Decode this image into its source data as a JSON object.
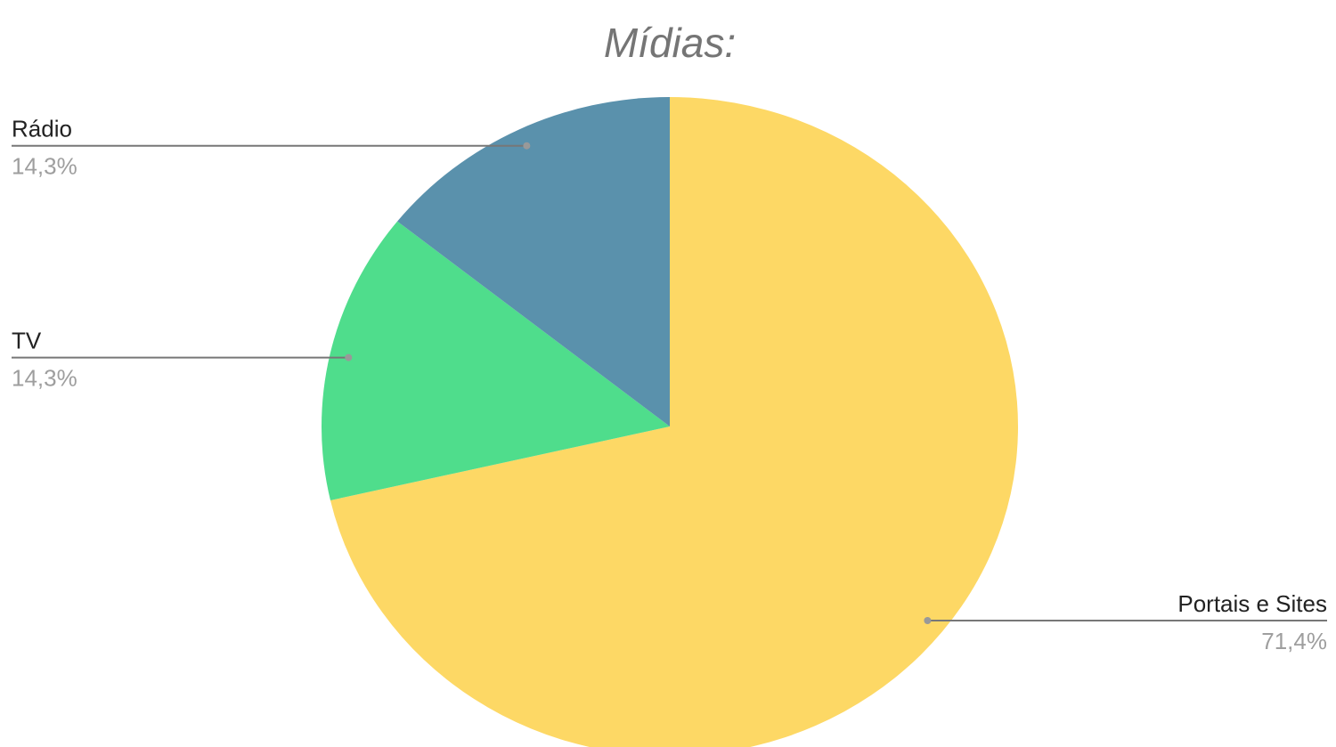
{
  "chart_data": {
    "type": "pie",
    "title": "Mídias:",
    "categories": [
      "Portais e Sites",
      "TV",
      "Rádio"
    ],
    "values": [
      71.4,
      14.3,
      14.3
    ],
    "value_labels": [
      "71,4%",
      "14,3%",
      "14,3%"
    ],
    "colors": [
      "#fdd865",
      "#4fdd8c",
      "#5a91ac"
    ]
  }
}
